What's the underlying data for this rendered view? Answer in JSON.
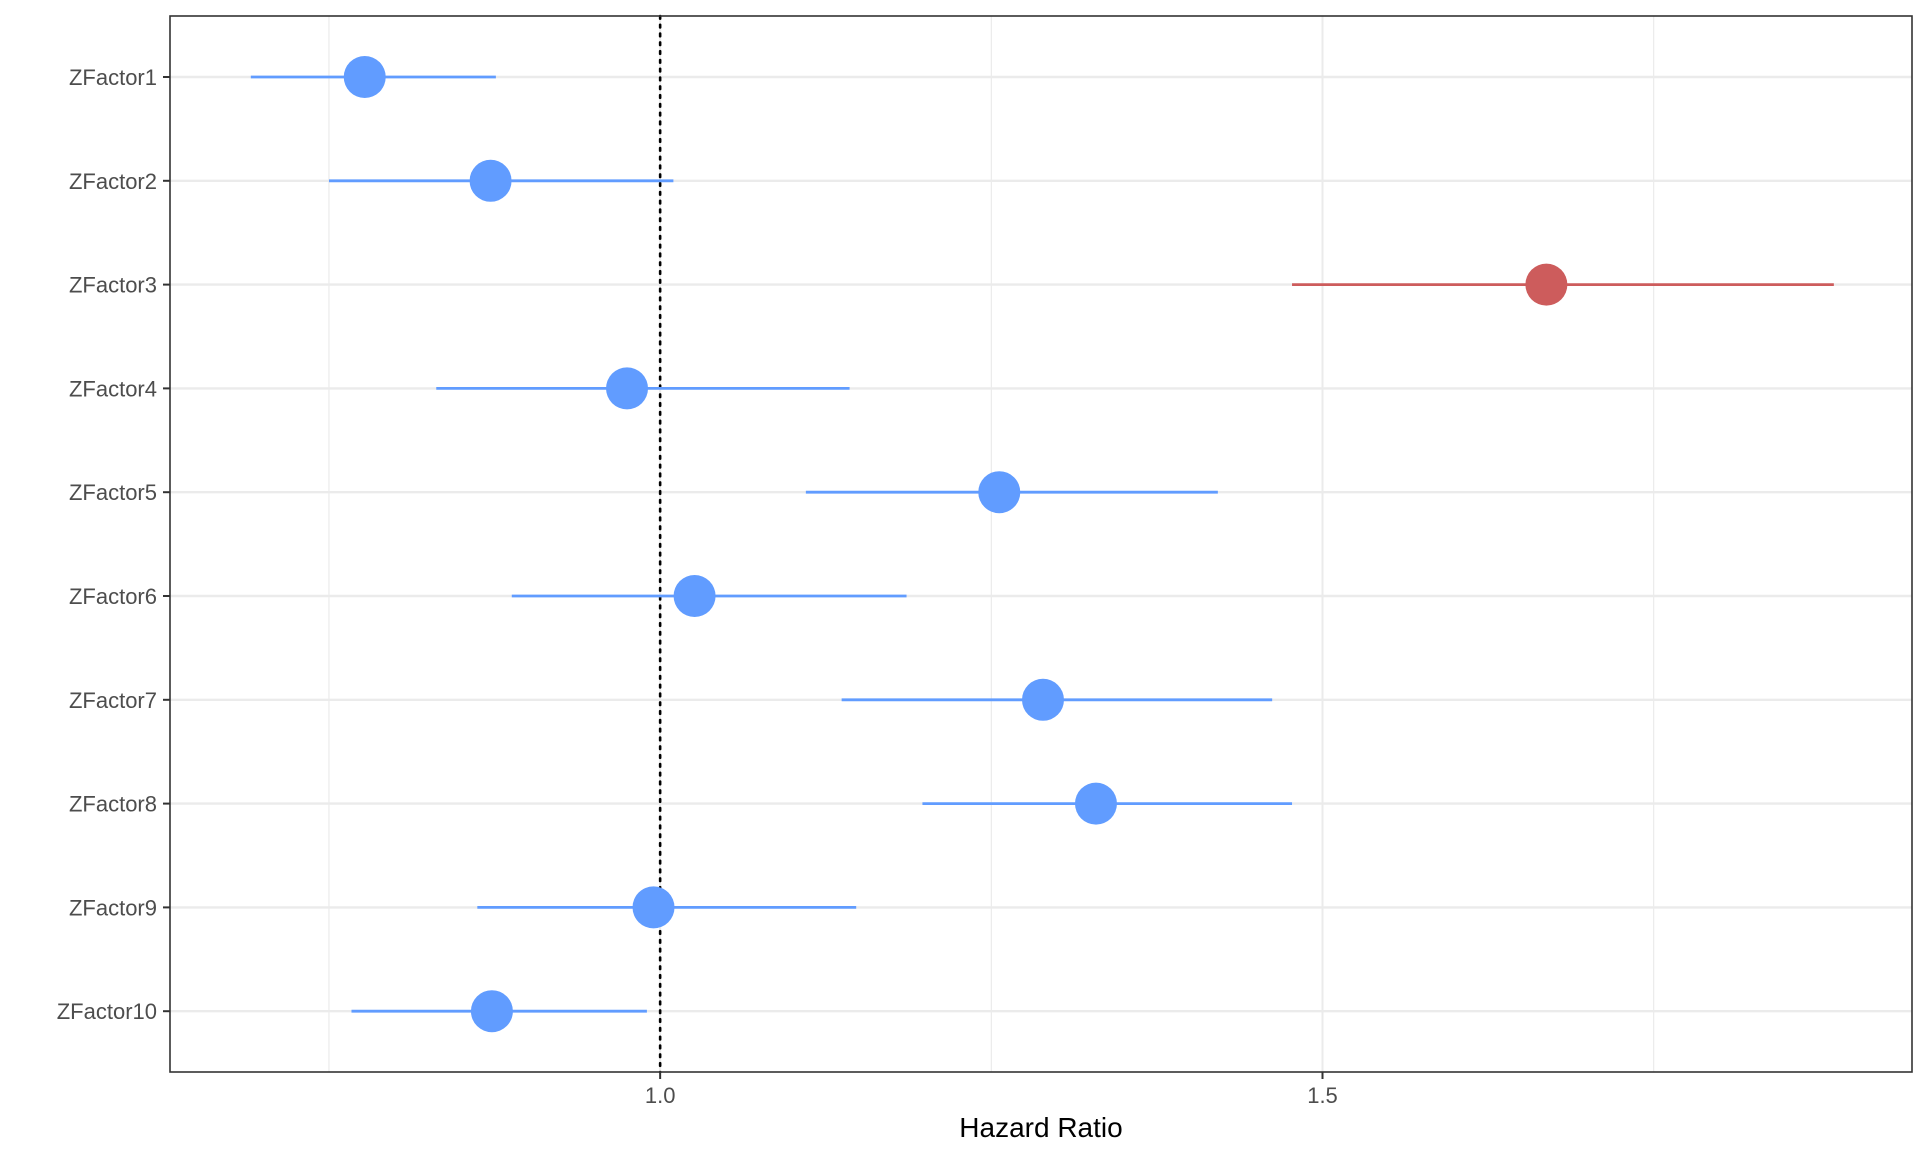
{
  "chart_data": {
    "type": "scatter",
    "subtype": "forest-plot",
    "title": "",
    "xlabel": "Hazard Ratio",
    "ylabel": "",
    "xlim": [
      0.63,
      1.945
    ],
    "x_ticks": [
      {
        "value": 1.0,
        "label": "1.0"
      },
      {
        "value": 1.5,
        "label": "1.5"
      }
    ],
    "x_minor_grid": [
      0.75,
      1.25,
      1.75
    ],
    "reference_line": {
      "value": 1.0,
      "style": "dotted"
    },
    "grid": true,
    "legend": "none",
    "categories": [
      "ZFactor1",
      "ZFactor2",
      "ZFactor3",
      "ZFactor4",
      "ZFactor5",
      "ZFactor6",
      "ZFactor7",
      "ZFactor8",
      "ZFactor9",
      "ZFactor10"
    ],
    "series": [
      {
        "points": [
          {
            "label": "ZFactor1",
            "estimate": 0.777,
            "lower": 0.691,
            "upper": 0.876,
            "color": "#619cff"
          },
          {
            "label": "ZFactor2",
            "estimate": 0.872,
            "lower": 0.75,
            "upper": 1.01,
            "color": "#619cff"
          },
          {
            "label": "ZFactor3",
            "estimate": 1.669,
            "lower": 1.477,
            "upper": 1.886,
            "color": "#cd5c5c"
          },
          {
            "label": "ZFactor4",
            "estimate": 0.975,
            "lower": 0.831,
            "upper": 1.143,
            "color": "#619cff"
          },
          {
            "label": "ZFactor5",
            "estimate": 1.256,
            "lower": 1.11,
            "upper": 1.421,
            "color": "#619cff"
          },
          {
            "label": "ZFactor6",
            "estimate": 1.026,
            "lower": 0.888,
            "upper": 1.186,
            "color": "#619cff"
          },
          {
            "label": "ZFactor7",
            "estimate": 1.289,
            "lower": 1.137,
            "upper": 1.462,
            "color": "#619cff"
          },
          {
            "label": "ZFactor8",
            "estimate": 1.329,
            "lower": 1.198,
            "upper": 1.477,
            "color": "#619cff"
          },
          {
            "label": "ZFactor9",
            "estimate": 0.995,
            "lower": 0.862,
            "upper": 1.148,
            "color": "#619cff"
          },
          {
            "label": "ZFactor10",
            "estimate": 0.873,
            "lower": 0.767,
            "upper": 0.99,
            "color": "#619cff"
          }
        ]
      }
    ]
  },
  "colors": {
    "significant_protective": "#619cff",
    "significant_risk": "#cd5c5c",
    "grid": "#ebebeb",
    "panel_border": "#333333"
  }
}
